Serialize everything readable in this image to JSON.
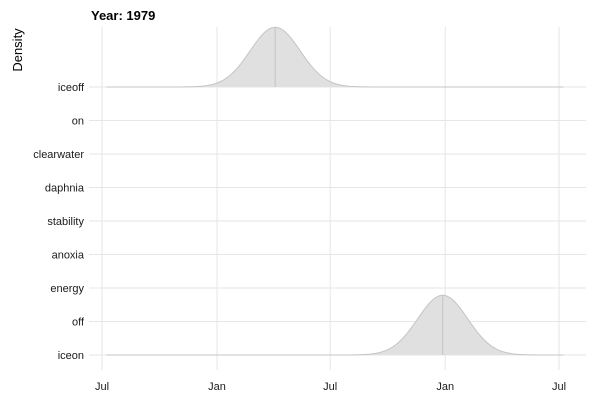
{
  "chart_data": {
    "type": "area",
    "subtype": "ridgeline-density",
    "title": "Year: 1979",
    "ylabel": "Density",
    "xlabel": "",
    "x_tick_labels": [
      "Jul",
      "Jan",
      "Jul",
      "Jan",
      "Jul"
    ],
    "x_ticks": [
      "1978-07-01",
      "1979-01-01",
      "1979-07-01",
      "1980-01-01",
      "1980-07-01"
    ],
    "xlim": [
      "1978-07-08",
      "1980-07-08"
    ],
    "categories": [
      "iceon",
      "off",
      "energy",
      "anoxia",
      "stability",
      "daphnia",
      "clearwater",
      "on",
      "iceoff"
    ],
    "grid": true,
    "fill_color": "#e0e0e0",
    "line_color": "#c4c4c4",
    "grid_color": "#e6e6e6",
    "series": [
      {
        "name": "iceoff",
        "peak_date": "1979-04-04",
        "sd_days": 40,
        "relative_height": 0.6
      },
      {
        "name": "iceon",
        "peak_date": "1979-12-28",
        "sd_days": 40,
        "relative_height": 0.6
      }
    ]
  }
}
